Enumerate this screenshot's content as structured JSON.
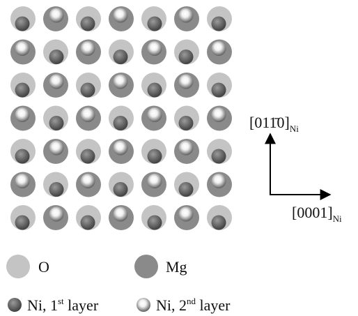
{
  "axes": {
    "vertical": {
      "label": "[011̄0]",
      "subscript": "Ni"
    },
    "horizontal": {
      "label": "[0001]",
      "subscript": "Ni"
    }
  },
  "legend": [
    {
      "label": "O"
    },
    {
      "label": "Mg"
    },
    {
      "label": "Ni, 1",
      "superscript": "st",
      "suffix": " layer"
    },
    {
      "label": "Ni, 2",
      "superscript": "nd",
      "suffix": " layer"
    }
  ]
}
